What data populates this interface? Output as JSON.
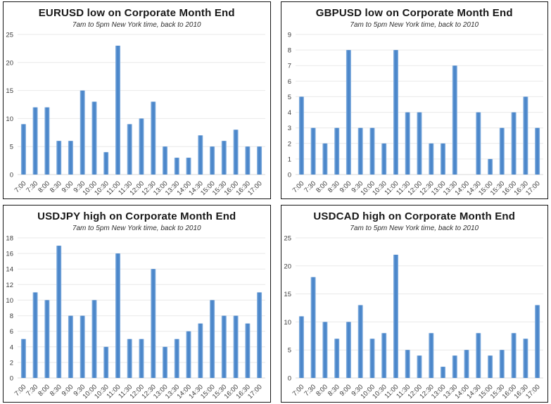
{
  "styles": {
    "grid_color": "#e9e9e9",
    "baseline_color": "#d9d9d9",
    "tick_color": "#3d3d3d",
    "panel_border_color": "#161616",
    "title_color": "#181818"
  },
  "chart_data": [
    {
      "type": "bar",
      "title": "EURUSD low on Corporate Month End",
      "subtitle": "7am to 5pm New York time, back to 2010",
      "xlabel": "",
      "ylabel": "",
      "categories": [
        "7:00",
        "7:30",
        "8:00",
        "8:30",
        "9:00",
        "9:30",
        "10:00",
        "10:30",
        "11:00",
        "11:30",
        "12:00",
        "12:30",
        "13:00",
        "13:30",
        "14:00",
        "14:30",
        "15:00",
        "15:30",
        "16:00",
        "16:30",
        "17:00"
      ],
      "values": [
        9,
        12,
        12,
        6,
        6,
        15,
        13,
        4,
        23,
        9,
        10,
        13,
        5,
        3,
        3,
        7,
        5,
        6,
        8,
        5,
        5
      ],
      "ylim": [
        0,
        25
      ],
      "ystep": 5,
      "grid": true,
      "legend": "none",
      "bar_color": "#4c87ca",
      "bar_edge_color": "#8ab4e2"
    },
    {
      "type": "bar",
      "title": "GBPUSD low on Corporate Month End",
      "subtitle": "7am to 5pm New York time, back to 2010",
      "xlabel": "",
      "ylabel": "",
      "categories": [
        "7:00",
        "7:30",
        "8:00",
        "8:30",
        "9:00",
        "9:30",
        "10:00",
        "10:30",
        "11:00",
        "11:30",
        "12:00",
        "12:30",
        "13:00",
        "13:30",
        "14:00",
        "14:30",
        "15:00",
        "15:30",
        "16:00",
        "16:30",
        "17:00"
      ],
      "values": [
        5,
        3,
        2,
        3,
        8,
        3,
        3,
        2,
        8,
        4,
        4,
        2,
        2,
        7,
        0,
        4,
        1,
        3,
        4,
        5,
        3
      ],
      "ylim": [
        0,
        9
      ],
      "ystep": 1,
      "grid": true,
      "legend": "none",
      "bar_color": "#4c87ca",
      "bar_edge_color": "#8ab4e2"
    },
    {
      "type": "bar",
      "title": "USDJPY high on Corporate Month End",
      "subtitle": "7am to 5pm New York time, back to 2010",
      "xlabel": "",
      "ylabel": "",
      "categories": [
        "7:00",
        "7:30",
        "8:00",
        "8:30",
        "9:00",
        "9:30",
        "10:00",
        "10:30",
        "11:00",
        "11:30",
        "12:00",
        "12:30",
        "13:00",
        "13:30",
        "14:00",
        "14:30",
        "15:00",
        "15:30",
        "16:00",
        "16:30",
        "17:00"
      ],
      "values": [
        5,
        11,
        10,
        17,
        8,
        8,
        10,
        4,
        16,
        5,
        5,
        14,
        4,
        5,
        6,
        7,
        10,
        8,
        8,
        7,
        11
      ],
      "ylim": [
        0,
        18
      ],
      "ystep": 2,
      "grid": true,
      "legend": "none",
      "bar_color": "#4c87ca",
      "bar_edge_color": "#8ab4e2"
    },
    {
      "type": "bar",
      "title": "USDCAD high on Corporate Month End",
      "subtitle": "7am to 5pm New York time, back to 2010",
      "xlabel": "",
      "ylabel": "",
      "categories": [
        "7:00",
        "7:30",
        "8:00",
        "8:30",
        "9:00",
        "9:30",
        "10:00",
        "10:30",
        "11:00",
        "11:30",
        "12:00",
        "12:30",
        "13:00",
        "13:30",
        "14:00",
        "14:30",
        "15:00",
        "15:30",
        "16:00",
        "16:30",
        "17:00"
      ],
      "values": [
        11,
        18,
        10,
        7,
        10,
        13,
        7,
        8,
        22,
        5,
        4,
        8,
        2,
        4,
        5,
        8,
        4,
        5,
        8,
        7,
        13
      ],
      "ylim": [
        0,
        25
      ],
      "ystep": 5,
      "grid": true,
      "legend": "none",
      "bar_color": "#4c87ca",
      "bar_edge_color": "#8ab4e2"
    }
  ]
}
